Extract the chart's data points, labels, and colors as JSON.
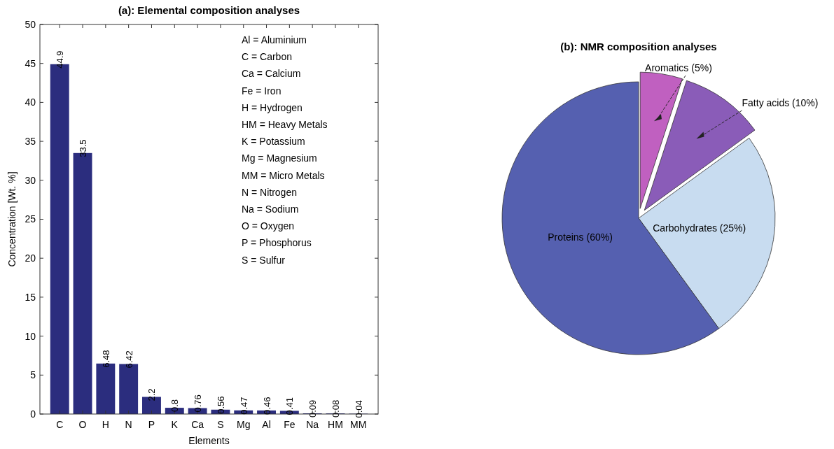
{
  "chart_data": [
    {
      "type": "bar",
      "title": "(a): Elemental composition analyses",
      "xlabel": "Elements",
      "ylabel": "Concentration [Wt. %]",
      "categories": [
        "C",
        "O",
        "H",
        "N",
        "P",
        "K",
        "Ca",
        "S",
        "Mg",
        "Al",
        "Fe",
        "Na",
        "HM",
        "MM"
      ],
      "values": [
        44.9,
        33.5,
        6.48,
        6.42,
        2.2,
        0.8,
        0.76,
        0.56,
        0.47,
        0.46,
        0.41,
        0.09,
        0.08,
        0.04
      ],
      "color": "#2b2d7e",
      "data_labels": true,
      "ylim": [
        0,
        50
      ],
      "yticks": [
        0,
        5,
        10,
        15,
        20,
        25,
        30,
        35,
        40,
        45,
        50
      ],
      "grid": false,
      "annotations": [
        "Al = Aluminium",
        "C = Carbon",
        "Ca = Calcium",
        "Fe = Iron",
        "H = Hydrogen",
        "HM = Heavy Metals",
        "K = Potassium",
        "Mg = Magnesium",
        "MM = Micro Metals",
        "N = Nitrogen",
        "Na = Sodium",
        "O = Oxygen",
        "P = Phosphorus",
        "S = Sulfur"
      ]
    },
    {
      "type": "pie",
      "title": "(b): NMR composition analyses",
      "categories": [
        "Aromatics (5%)",
        "Fatty acids (10%)",
        "Carbohydrates (25%)",
        "Proteins (60%)"
      ],
      "values": [
        5,
        10,
        25,
        60
      ],
      "colors": [
        "#c060c0",
        "#8a5cb8",
        "#c8dcf0",
        "#5560b0"
      ]
    }
  ]
}
